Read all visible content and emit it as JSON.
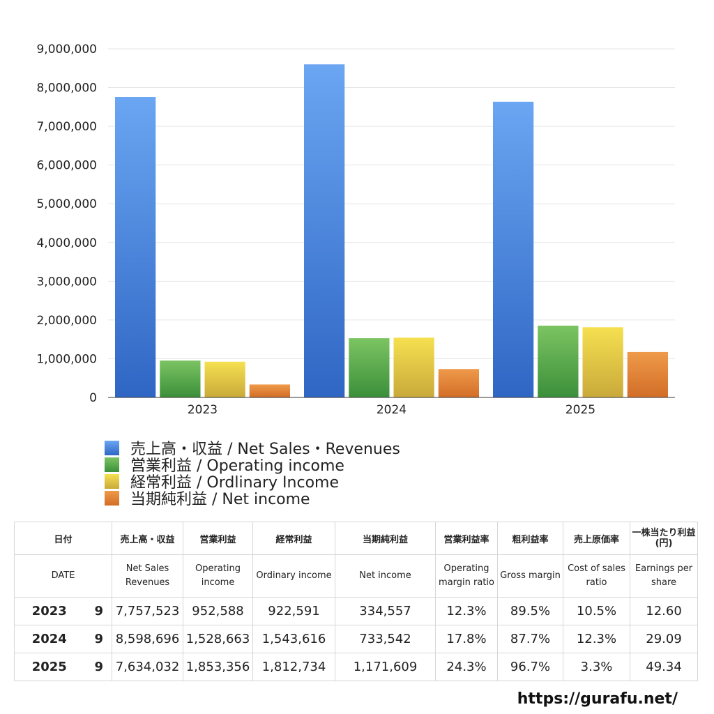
{
  "chart_data": {
    "type": "bar",
    "categories": [
      "2023",
      "2024",
      "2025"
    ],
    "series": [
      {
        "name": "売上高・収益 / Net Sales・Revenues",
        "values": [
          7757523,
          8598696,
          7634032
        ],
        "color": "#3f7ee0"
      },
      {
        "name": "営業利益 / Operating income",
        "values": [
          952588,
          1528663,
          1853356
        ],
        "color": "#4ea64a"
      },
      {
        "name": "経常利益 / Ordlinary Income",
        "values": [
          922591,
          1543616,
          1812734
        ],
        "color": "#e4c93c"
      },
      {
        "name": "当期純利益 / Net income",
        "values": [
          334557,
          733542,
          1171609
        ],
        "color": "#e07d2f"
      }
    ],
    "ylim": [
      0,
      9000000
    ],
    "yticks": [
      "0",
      "1,000,000",
      "2,000,000",
      "3,000,000",
      "4,000,000",
      "5,000,000",
      "6,000,000",
      "7,000,000",
      "8,000,000",
      "9,000,000"
    ],
    "grid": true,
    "legend_position": "bottom-left"
  },
  "table": {
    "header_jp": [
      "日付",
      "売上高・収益",
      "営業利益",
      "経常利益",
      "当期純利益",
      "営業利益率",
      "粗利益率",
      "売上原価率",
      "一株当たり利益(円)"
    ],
    "header_en": [
      "DATE",
      "Net Sales Revenues",
      "Operating income",
      "Ordinary income",
      "Net income",
      "Operating margin ratio",
      "Gross margin",
      "Cost of sales ratio",
      "Earnings per share"
    ],
    "rows": [
      {
        "year": "2023",
        "month": "9",
        "sales": "7,757,523",
        "op": "952,588",
        "ord": "922,591",
        "net": "334,557",
        "opm": "12.3%",
        "gm": "89.5%",
        "cos": "10.5%",
        "eps": "12.60"
      },
      {
        "year": "2024",
        "month": "9",
        "sales": "8,598,696",
        "op": "1,528,663",
        "ord": "1,543,616",
        "net": "733,542",
        "opm": "17.8%",
        "gm": "87.7%",
        "cos": "12.3%",
        "eps": "29.09"
      },
      {
        "year": "2025",
        "month": "9",
        "sales": "7,634,032",
        "op": "1,853,356",
        "ord": "1,812,734",
        "net": "1,171,609",
        "opm": "24.3%",
        "gm": "96.7%",
        "cos": "3.3%",
        "eps": "49.34"
      }
    ]
  },
  "site_url": "https://gurafu.net/"
}
